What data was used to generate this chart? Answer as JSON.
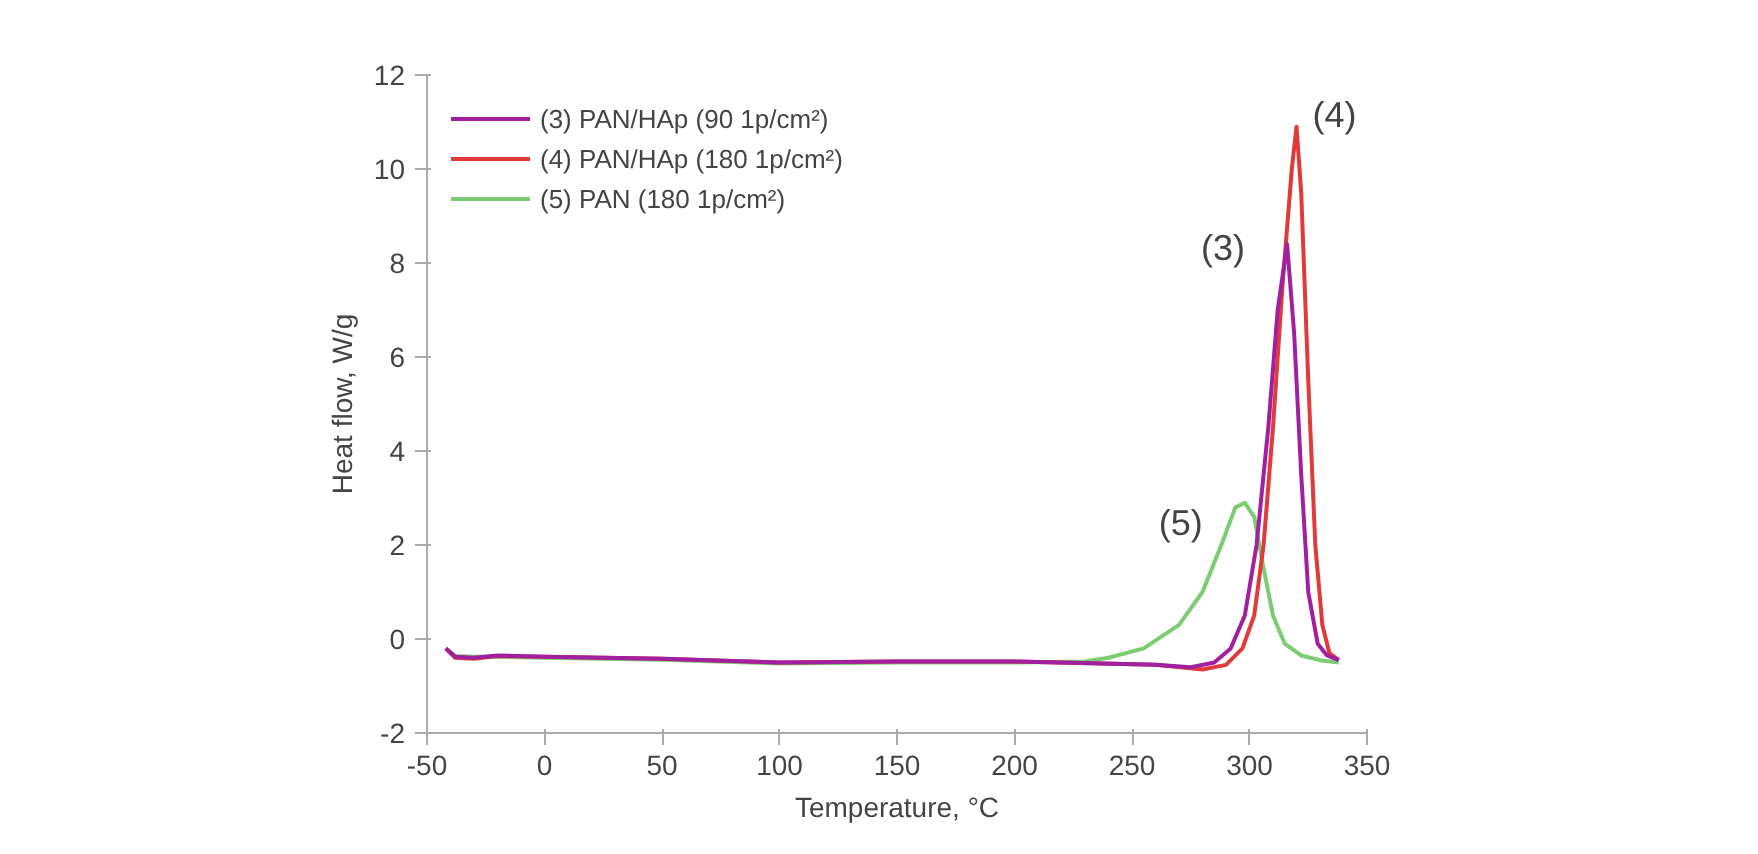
{
  "chart_data": {
    "type": "line",
    "xlabel": "Temperature, °C",
    "ylabel": "Heat flow, W/g",
    "xlim": [
      -50,
      350
    ],
    "xticks": [
      -50,
      0,
      50,
      100,
      150,
      200,
      250,
      300,
      350
    ],
    "ylim": [
      -2,
      12
    ],
    "yticks": [
      -2,
      0,
      2,
      4,
      6,
      8,
      10,
      12
    ],
    "grid": false,
    "legend": "top left",
    "marker": "none",
    "line_style": "solid",
    "annotations": [
      "(3)",
      "(4)",
      "(5)"
    ],
    "series": [
      {
        "name": "(3) PAN/HAp (90 1p/cm²)",
        "color": "#a020a0",
        "x": [
          -42,
          -38,
          -30,
          -20,
          0,
          50,
          100,
          150,
          200,
          260,
          275,
          285,
          292,
          298,
          303,
          308,
          312,
          316,
          319,
          322,
          325,
          329,
          333,
          338
        ],
        "values": [
          -0.2,
          -0.38,
          -0.4,
          -0.35,
          -0.38,
          -0.42,
          -0.5,
          -0.48,
          -0.48,
          -0.55,
          -0.6,
          -0.5,
          -0.2,
          0.5,
          2.0,
          4.5,
          7.0,
          8.4,
          6.5,
          3.5,
          1.0,
          -0.1,
          -0.35,
          -0.45
        ]
      },
      {
        "name": "(4) PAN/HAp (180 1p/cm²)",
        "color": "#e03a3a",
        "x": [
          -42,
          -38,
          -30,
          -20,
          0,
          50,
          100,
          150,
          200,
          260,
          280,
          290,
          297,
          302,
          306,
          310,
          314,
          318,
          320,
          322,
          325,
          328,
          331,
          334,
          338
        ],
        "values": [
          -0.2,
          -0.4,
          -0.42,
          -0.36,
          -0.38,
          -0.42,
          -0.5,
          -0.48,
          -0.48,
          -0.55,
          -0.65,
          -0.55,
          -0.2,
          0.5,
          2.0,
          4.5,
          7.5,
          10.0,
          10.9,
          9.5,
          5.5,
          2.0,
          0.3,
          -0.3,
          -0.45
        ]
      },
      {
        "name": "(5) PAN (180 1p/cm²)",
        "color": "#7ccc72",
        "x": [
          -42,
          -38,
          -30,
          -20,
          0,
          50,
          100,
          150,
          200,
          230,
          240,
          255,
          270,
          280,
          288,
          294,
          298,
          302,
          306,
          310,
          315,
          322,
          330,
          338
        ],
        "values": [
          -0.2,
          -0.36,
          -0.38,
          -0.38,
          -0.4,
          -0.44,
          -0.52,
          -0.5,
          -0.5,
          -0.48,
          -0.4,
          -0.2,
          0.3,
          1.0,
          2.0,
          2.8,
          2.9,
          2.6,
          1.5,
          0.5,
          -0.1,
          -0.35,
          -0.45,
          -0.5
        ]
      }
    ]
  }
}
